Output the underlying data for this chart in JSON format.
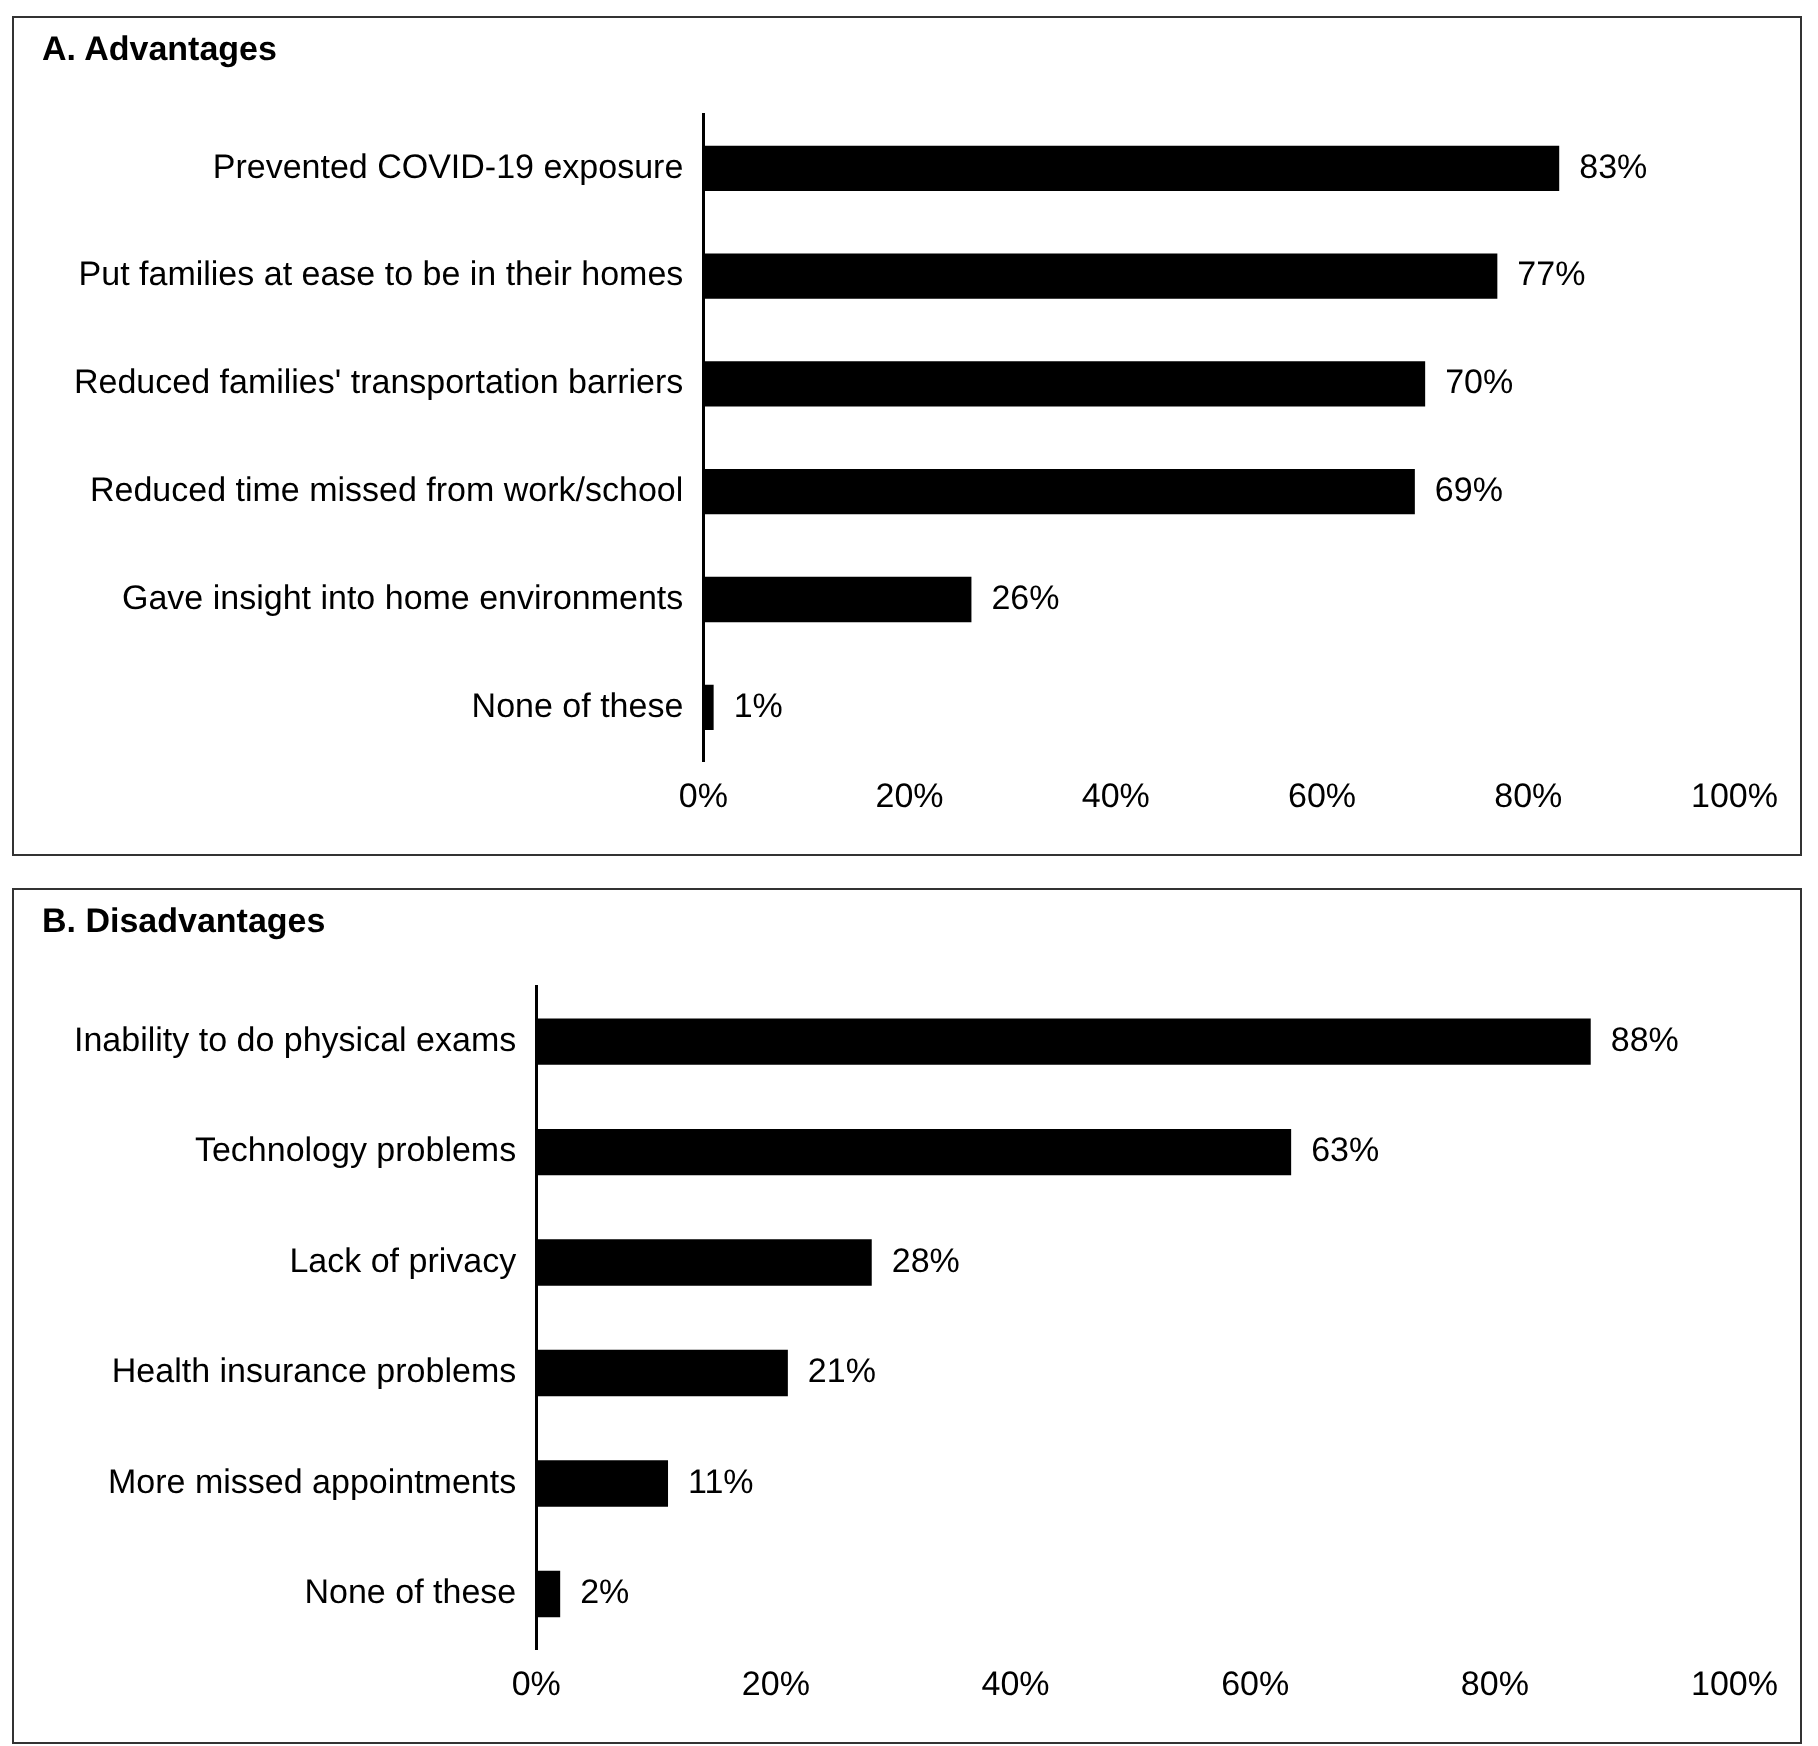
{
  "chart_data": [
    {
      "type": "bar",
      "orientation": "horizontal",
      "title": "A.  Advantages",
      "categories": [
        "Prevented COVID-19 exposure",
        "Put families at ease to be in their homes",
        "Reduced families' transportation barriers",
        "Reduced time missed from work/school",
        "Gave insight into home environments",
        "None of these"
      ],
      "values": [
        83,
        77,
        70,
        69,
        26,
        1
      ],
      "value_labels": [
        "83%",
        "77%",
        "70%",
        "69%",
        "26%",
        "1%"
      ],
      "color": "#000000",
      "xlim": [
        0,
        100
      ],
      "xticks": [
        {
          "value": 0,
          "label": "0%"
        },
        {
          "value": 20,
          "label": "20%"
        },
        {
          "value": 40,
          "label": "40%"
        },
        {
          "value": 60,
          "label": "60%"
        },
        {
          "value": 80,
          "label": "80%"
        },
        {
          "value": 100,
          "label": "100%"
        }
      ],
      "grid": false,
      "legend": false
    },
    {
      "type": "bar",
      "orientation": "horizontal",
      "title": "B. Disadvantages",
      "categories": [
        "Inability to do physical exams",
        "Technology problems",
        "Lack of privacy",
        "Health insurance problems",
        "More missed appointments",
        "None of these"
      ],
      "values": [
        88,
        63,
        28,
        21,
        11,
        2
      ],
      "value_labels": [
        "88%",
        "63%",
        "28%",
        "21%",
        "11%",
        "2%"
      ],
      "color": "#000000",
      "xlim": [
        0,
        100
      ],
      "xticks": [
        {
          "value": 0,
          "label": "0%"
        },
        {
          "value": 20,
          "label": "20%"
        },
        {
          "value": 40,
          "label": "40%"
        },
        {
          "value": 60,
          "label": "60%"
        },
        {
          "value": 80,
          "label": "80%"
        },
        {
          "value": 100,
          "label": "100%"
        }
      ],
      "grid": false,
      "legend": false
    }
  ]
}
